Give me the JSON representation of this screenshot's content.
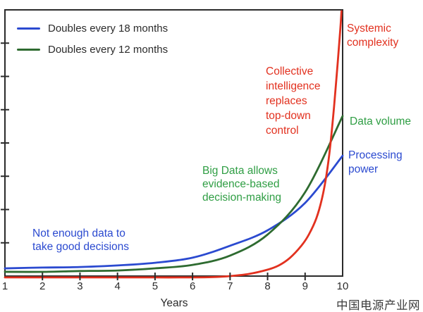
{
  "colors": {
    "blue": "#2b4ad0",
    "green_curve": "#2e6b30",
    "green_text": "#2f9e44",
    "red": "#e2311f",
    "axis": "#2b2b2b",
    "legend_text": "#2b2b2b",
    "watermark": "#3c3c3c"
  },
  "legend": {
    "items": [
      {
        "label": "Doubles every 18 months",
        "color_key": "blue"
      },
      {
        "label": "Doubles every 12 months",
        "color_key": "green_curve"
      }
    ]
  },
  "x_axis": {
    "ticks": [
      "1",
      "2",
      "3",
      "4",
      "5",
      "6",
      "7",
      "8",
      "9",
      "10"
    ],
    "label": "Years"
  },
  "annotations": {
    "not_enough_data": "Not enough data to\ntake good decisions",
    "big_data": "Big Data allows\nevidence-based\ndecision-making",
    "collective": "Collective\nintelligence\nreplaces\ntop-down\ncontrol"
  },
  "curve_labels": {
    "systemic": "Systemic\ncomplexity",
    "data_volume": "Data volume",
    "processing": "Processing\npower"
  },
  "watermark": "中国电源产业网",
  "chart_data": {
    "type": "line",
    "title": "",
    "xlabel": "Years",
    "ylabel": "",
    "x_range": [
      1,
      10
    ],
    "x_tick_labels": [
      1,
      2,
      3,
      4,
      5,
      6,
      7,
      8,
      9,
      10
    ],
    "grid": false,
    "legend_position": "top-left",
    "y_axis": {
      "visible_scale": false,
      "interior_tick_count": 7
    },
    "series": [
      {
        "name": "Processing power",
        "legend": "Doubles every 18 months",
        "color_key": "blue",
        "x": [
          1,
          2,
          3,
          4,
          5,
          6,
          7,
          8,
          9,
          10
        ],
        "y_norm": [
          0.029,
          0.032,
          0.034,
          0.04,
          0.05,
          0.069,
          0.114,
          0.172,
          0.275,
          0.452
        ]
      },
      {
        "name": "Data volume",
        "legend": "Doubles every 12 months",
        "color_key": "green_curve",
        "x": [
          1,
          2,
          3,
          4,
          5,
          6,
          7,
          8,
          9,
          10
        ],
        "y_norm": [
          0.016,
          0.016,
          0.019,
          0.021,
          0.029,
          0.042,
          0.077,
          0.156,
          0.315,
          0.601
        ]
      },
      {
        "name": "Systemic complexity",
        "legend": null,
        "color_key": "red",
        "x": [
          1,
          2,
          3,
          4,
          5,
          6,
          6.5,
          7,
          7.5,
          8,
          8.3,
          8.6,
          8.9,
          9.1,
          9.3,
          9.45,
          9.57,
          9.67,
          9.77,
          9.87,
          9.94,
          9.97
        ],
        "y_norm": [
          -0.005,
          -0.005,
          -0.005,
          -0.005,
          -0.005,
          -0.005,
          -0.004,
          0.0,
          0.008,
          0.024,
          0.04,
          0.069,
          0.114,
          0.156,
          0.217,
          0.291,
          0.381,
          0.489,
          0.635,
          0.804,
          0.931,
          0.995
        ]
      }
    ]
  }
}
